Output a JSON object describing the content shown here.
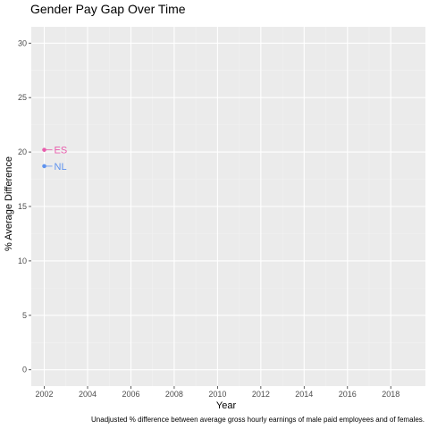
{
  "chart_data": {
    "type": "line",
    "title": "Gender Pay Gap Over Time",
    "xlabel": "Year",
    "ylabel": "% Average Difference",
    "caption": "Unadjusted % difference between average gross hourly earnings of male paid employees and of females.",
    "xlim": [
      2001.4,
      2019.6
    ],
    "ylim": [
      -1.5,
      31.5
    ],
    "x_ticks": [
      2002,
      2004,
      2006,
      2008,
      2010,
      2012,
      2014,
      2016,
      2018
    ],
    "y_ticks": [
      0,
      5,
      10,
      15,
      20,
      25,
      30
    ],
    "grid": true,
    "legend": "none",
    "series": [
      {
        "name": "ES",
        "color": "#e85ead",
        "points": [
          {
            "x": 2002,
            "y": 20.2
          }
        ]
      },
      {
        "name": "NL",
        "color": "#5f93ee",
        "points": [
          {
            "x": 2002,
            "y": 18.7
          }
        ]
      }
    ]
  }
}
